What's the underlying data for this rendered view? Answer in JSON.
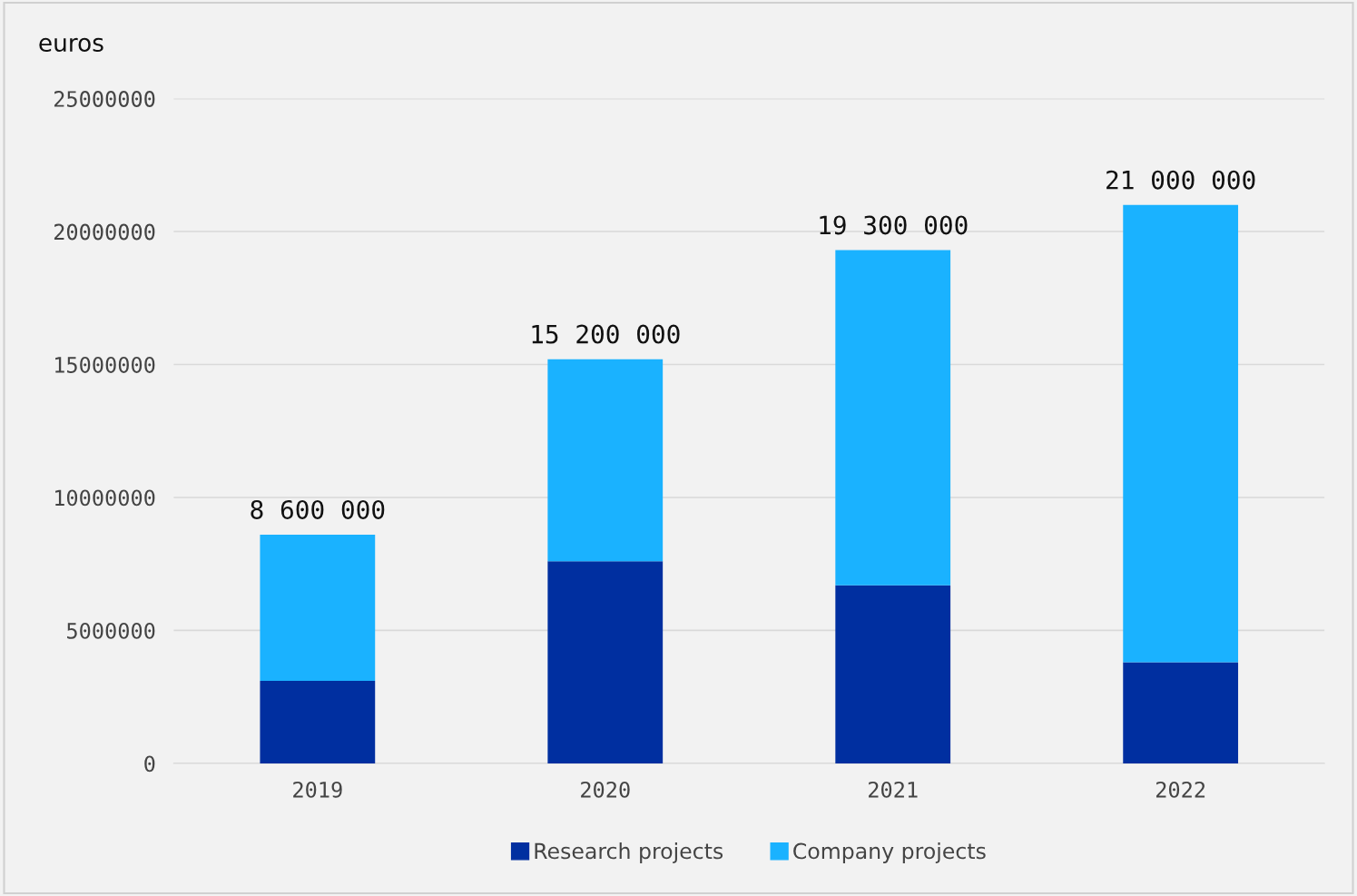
{
  "chart_data": {
    "type": "bar",
    "stacked": true,
    "ylabel": "euros",
    "categories": [
      "2019",
      "2020",
      "2021",
      "2022"
    ],
    "series": [
      {
        "name": "Research projects",
        "color": "#002fa0",
        "values": [
          3100000,
          7600000,
          6700000,
          3800000
        ]
      },
      {
        "name": "Company projects",
        "color": "#1ab2ff",
        "values": [
          5500000,
          7600000,
          12600000,
          17200000
        ]
      }
    ],
    "totals": [
      "8 600 000",
      "15 200 000",
      "19 300 000",
      "21 000 000"
    ],
    "ylim": [
      0,
      25000000
    ],
    "yticks": [
      0,
      5000000,
      10000000,
      15000000,
      20000000,
      25000000
    ],
    "grid": "y",
    "legend": "bottom"
  }
}
